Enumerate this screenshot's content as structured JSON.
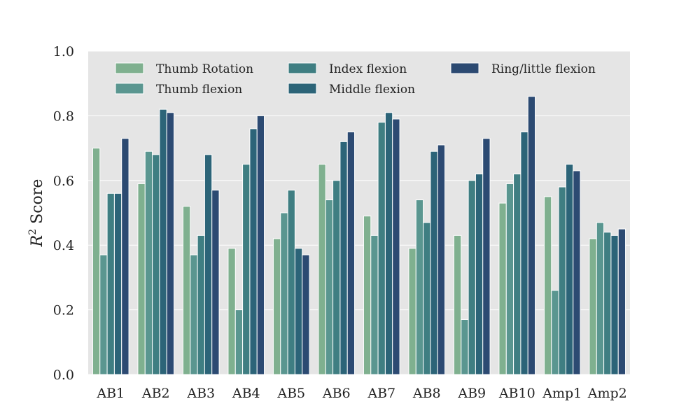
{
  "chart_data": {
    "type": "bar",
    "categories": [
      "AB1",
      "AB2",
      "AB3",
      "AB4",
      "AB5",
      "AB6",
      "AB7",
      "AB8",
      "AB9",
      "AB10",
      "Amp1",
      "Amp2"
    ],
    "series": [
      {
        "name": "Thumb Rotation",
        "color": "#7fb08f",
        "values": [
          0.7,
          0.59,
          0.52,
          0.39,
          0.42,
          0.65,
          0.49,
          0.39,
          0.43,
          0.53,
          0.55,
          0.42
        ]
      },
      {
        "name": "Thumb flexion",
        "color": "#5a9690",
        "values": [
          0.37,
          0.69,
          0.37,
          0.2,
          0.5,
          0.54,
          0.43,
          0.54,
          0.17,
          0.59,
          0.26,
          0.47
        ]
      },
      {
        "name": "Index flexion",
        "color": "#3f7e82",
        "values": [
          0.56,
          0.68,
          0.43,
          0.65,
          0.57,
          0.6,
          0.78,
          0.47,
          0.6,
          0.62,
          0.58,
          0.44
        ]
      },
      {
        "name": "Middle flexion",
        "color": "#2c6478",
        "values": [
          0.56,
          0.82,
          0.68,
          0.76,
          0.39,
          0.72,
          0.81,
          0.69,
          0.62,
          0.75,
          0.65,
          0.43
        ]
      },
      {
        "name": "Ring/little flexion",
        "color": "#2c4a72",
        "values": [
          0.73,
          0.81,
          0.57,
          0.8,
          0.37,
          0.75,
          0.79,
          0.71,
          0.73,
          0.86,
          0.63,
          0.45
        ]
      }
    ],
    "ylabel_base": "R",
    "ylabel_sup": "2",
    "ylabel_rest": " Score",
    "ylim": [
      0,
      1.0
    ],
    "yticks": [
      "0.0",
      "0.2",
      "0.4",
      "0.6",
      "0.8",
      "1.0"
    ],
    "ytick_values": [
      0,
      0.2,
      0.4,
      0.6,
      0.8,
      1.0
    ],
    "grid": true,
    "legend_position": "top"
  }
}
